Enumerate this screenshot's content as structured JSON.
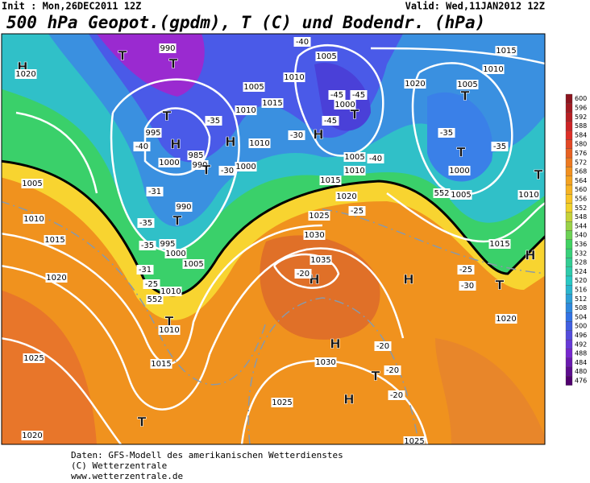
{
  "header": {
    "init": "Init : Mon,26DEC2011  12Z",
    "valid": "Valid: Wed,11JAN2012  12Z",
    "title": "500 hPa Geopot.(gpdm), T (C) und Bodendr. (hPa)"
  },
  "legend": {
    "levels": [
      600,
      596,
      592,
      588,
      584,
      580,
      576,
      572,
      568,
      564,
      560,
      556,
      552,
      548,
      544,
      540,
      536,
      532,
      528,
      524,
      520,
      516,
      512,
      508,
      504,
      500,
      496,
      492,
      488,
      484,
      480,
      476
    ]
  },
  "map": {
    "labels": [
      "H",
      "1020",
      "T",
      "990",
      "T",
      "1005",
      "1010",
      "1015",
      "T",
      "995",
      "H",
      "-40",
      "985",
      "990",
      "1000",
      "T",
      "H",
      "1010",
      "-30",
      "1000",
      "-35",
      "1005",
      "-31",
      "990",
      "T",
      "-35",
      "1010",
      "1015",
      "-35",
      "995",
      "1000",
      "1005",
      "-31",
      "-25",
      "1010",
      "1020",
      "T",
      "1010",
      "1015",
      "1025",
      "552",
      "-40",
      "1005",
      "1010",
      "-45",
      "-45",
      "1000",
      "T",
      "-45",
      "H",
      "-30",
      "1005",
      "1010",
      "-40",
      "1015",
      "1020",
      "1025",
      "-25",
      "1015",
      "1020",
      "1005",
      "T",
      "1010",
      "-35",
      "-35",
      "T",
      "1000",
      "1005",
      "T",
      "1010",
      "1015",
      "H",
      "1030",
      "1035",
      "H",
      "-20",
      "H",
      "-25",
      "-30",
      "T",
      "1020",
      "H",
      "-20",
      "1030",
      "-20",
      "T",
      "-20",
      "H",
      "1025",
      "1025",
      "T",
      "1020",
      "552"
    ]
  },
  "footer": {
    "lines": [
      "Daten: GFS-Modell des amerikanischen Wetterdienstes",
      "(C) Wetterzentrale",
      "www.wetterzentrale.de"
    ]
  }
}
